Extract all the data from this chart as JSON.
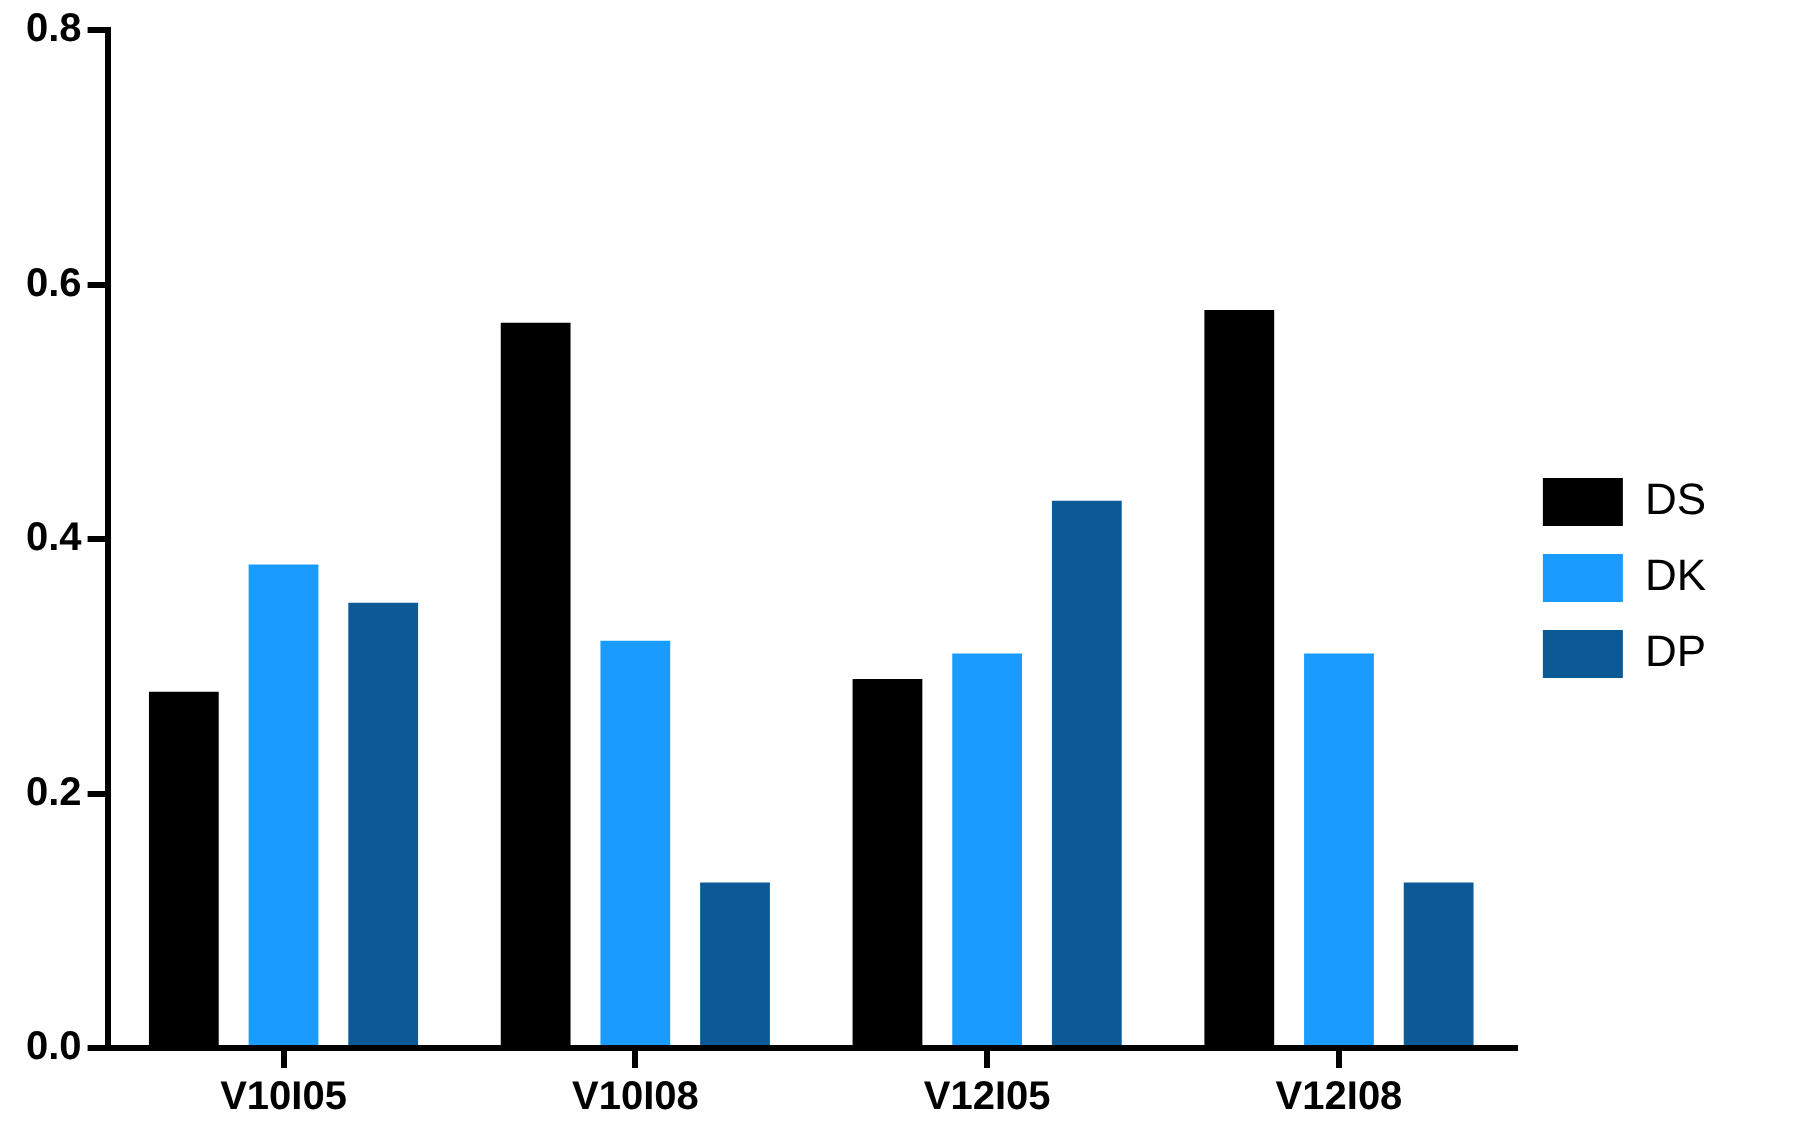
{
  "chart_data": {
    "type": "bar",
    "categories": [
      "V10I05",
      "V10I08",
      "V12I05",
      "V12I08"
    ],
    "series": [
      {
        "name": "DS",
        "color": "#000000",
        "values": [
          0.28,
          0.57,
          0.29,
          0.58
        ]
      },
      {
        "name": "DK",
        "color": "#1a9bff",
        "values": [
          0.38,
          0.32,
          0.31,
          0.31
        ]
      },
      {
        "name": "DP",
        "color": "#0b5a96",
        "values": [
          0.35,
          0.13,
          0.43,
          0.13
        ]
      }
    ],
    "ylim": [
      0,
      0.8
    ],
    "yticks": [
      {
        "value": 0,
        "label": "0.0"
      },
      {
        "value": 0.2,
        "label": "0.2"
      },
      {
        "value": 0.4,
        "label": "0.4"
      },
      {
        "value": 0.6,
        "label": "0.6"
      },
      {
        "value": 0.8,
        "label": "0.8"
      }
    ],
    "grid": false,
    "legend": "right"
  }
}
